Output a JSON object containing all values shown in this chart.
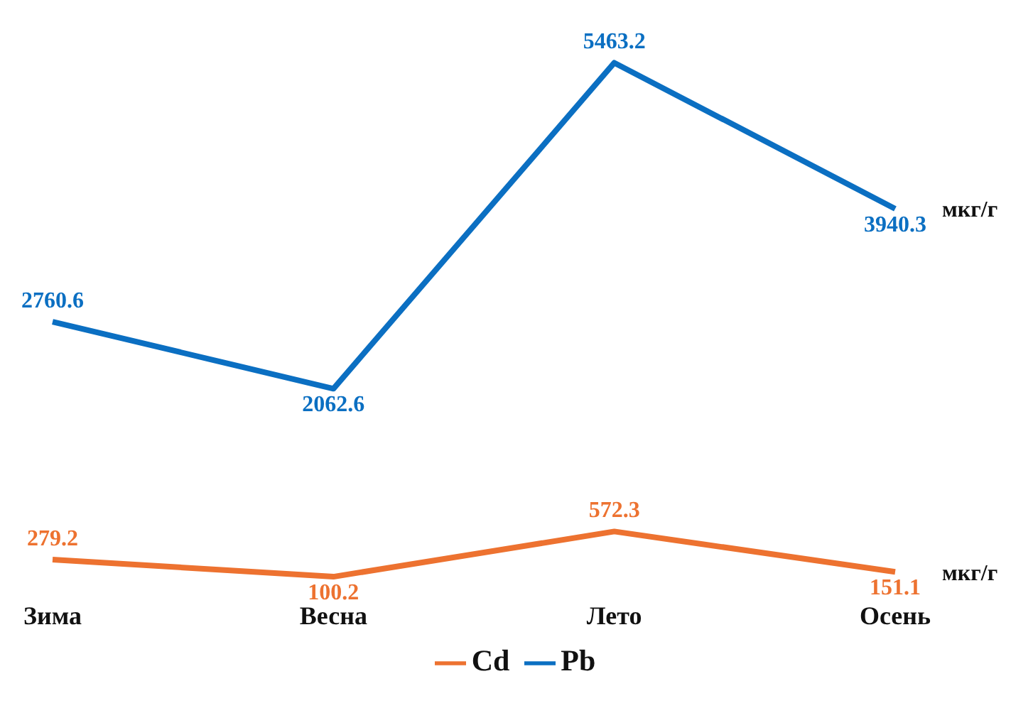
{
  "chart_data": {
    "type": "line",
    "categories": [
      "Зима",
      "Весна",
      "Лето",
      "Осень"
    ],
    "series": [
      {
        "name": "Pb",
        "color": "#0b6fc2",
        "values": [
          2760.6,
          2062.6,
          5463.2,
          3940.3
        ]
      },
      {
        "name": "Cd",
        "color": "#ed7230",
        "values": [
          279.2,
          100.2,
          572.3,
          151.1
        ]
      }
    ],
    "tick_labels": "x",
    "data_labels": true,
    "legend": "bottom",
    "grid": false,
    "marker": "none",
    "line_style": "solid",
    "annotations": [
      {
        "text": "мкг/г",
        "x": "Осень",
        "y": 3940.3
      },
      {
        "text": "мкг/г",
        "x": "Осень",
        "y": 151.1
      }
    ]
  }
}
